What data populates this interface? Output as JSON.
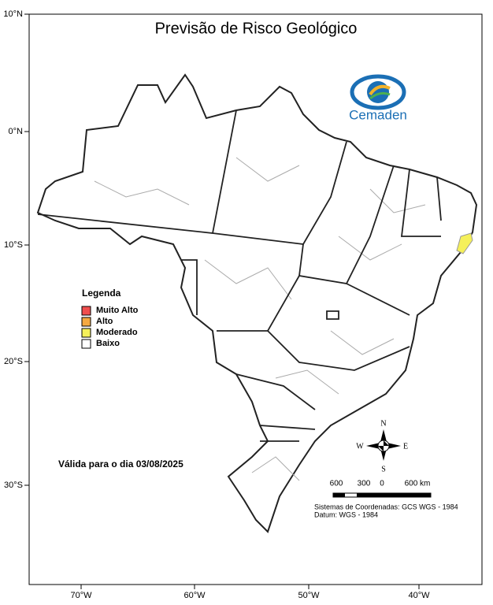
{
  "title": "Previsão de Risco Geológico",
  "logo": "Cemaden",
  "latitude_labels": [
    "10°N",
    "0°N",
    "10°S",
    "20°S",
    "30°S"
  ],
  "longitude_labels": [
    "70°W",
    "60°W",
    "50°W",
    "40°W"
  ],
  "legend": {
    "title": "Legenda",
    "items": [
      {
        "label": "Muito Alto",
        "color": "#f04e4e"
      },
      {
        "label": "Alto",
        "color": "#f5a940"
      },
      {
        "label": "Moderado",
        "color": "#f5f05a"
      },
      {
        "label": "Baixo",
        "color": "#ffffff"
      }
    ]
  },
  "validity": "Válida para o dia 03/08/2025",
  "compass": {
    "north": "N",
    "south": "S",
    "east": "E",
    "west": "W"
  },
  "scale_labels": [
    "600",
    "300",
    "0",
    "600 km"
  ],
  "coordinate_system": [
    "Sistemas de Coordenadas: GCS WGS - 1984",
    "Datum: WGS - 1984"
  ]
}
